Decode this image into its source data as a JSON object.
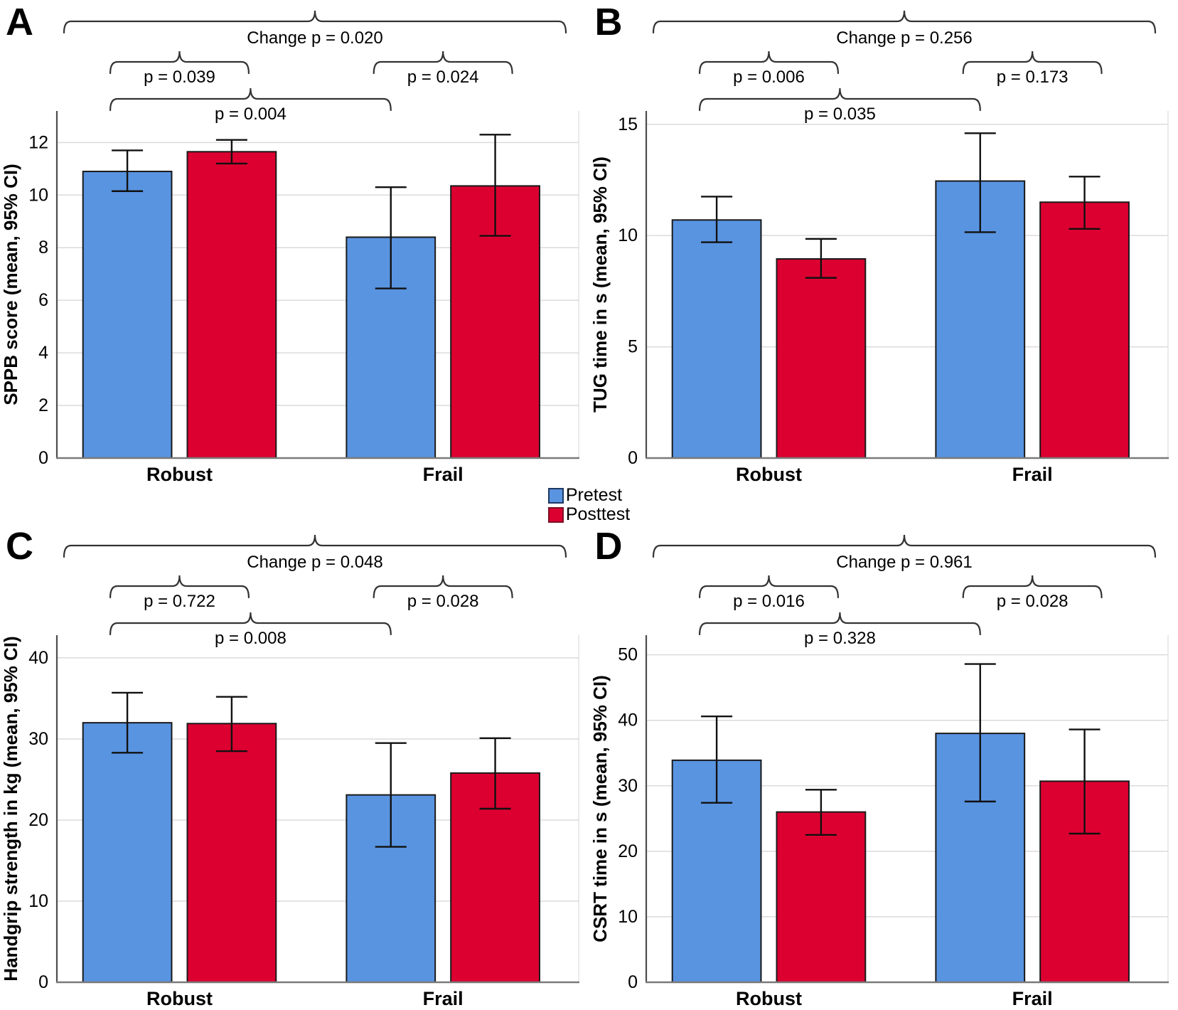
{
  "legend": {
    "items": [
      {
        "label": "Pretest",
        "color": "#5994E1",
        "border": "#1F3864"
      },
      {
        "label": "Posttest",
        "color": "#DC0031",
        "border": "#7E1023"
      }
    ]
  },
  "style": {
    "grid_color": "#DBDBDB",
    "axis_color": "#4D4D4D",
    "baseline_color": "#7A7A7A",
    "bar_border": "#1A1A1A",
    "error_color": "#111111",
    "bracket_color": "#333333",
    "text_color": "#000000"
  },
  "chart_data": [
    {
      "type": "bar",
      "panel": "A",
      "ylabel": "SPPB score (mean, 95% CI)",
      "categories": [
        "Robust",
        "Frail"
      ],
      "series": [
        {
          "name": "Pretest",
          "means": [
            10.9,
            8.4
          ],
          "ci_low": [
            10.15,
            6.45
          ],
          "ci_high": [
            11.7,
            10.3
          ]
        },
        {
          "name": "Posttest",
          "means": [
            11.65,
            10.35
          ],
          "ci_low": [
            11.2,
            8.45
          ],
          "ci_high": [
            12.1,
            12.3
          ]
        }
      ],
      "yticks": [
        0,
        2,
        4,
        6,
        8,
        10,
        12
      ],
      "ylim": [
        0,
        13.2
      ],
      "grid": true,
      "annotations": {
        "change": "Change p = 0.020",
        "pairs": [
          "p = 0.039",
          "p = 0.024"
        ],
        "cross": "p = 0.004"
      }
    },
    {
      "type": "bar",
      "panel": "B",
      "ylabel": "TUG time in s (mean, 95% CI)",
      "categories": [
        "Robust",
        "Frail"
      ],
      "series": [
        {
          "name": "Pretest",
          "means": [
            10.7,
            12.45
          ],
          "ci_low": [
            9.7,
            10.15
          ],
          "ci_high": [
            11.75,
            14.6
          ]
        },
        {
          "name": "Posttest",
          "means": [
            8.95,
            11.5
          ],
          "ci_low": [
            8.1,
            10.3
          ],
          "ci_high": [
            9.85,
            12.65
          ]
        }
      ],
      "yticks": [
        0,
        5,
        10,
        15
      ],
      "ylim": [
        0,
        15.6
      ],
      "grid": true,
      "annotations": {
        "change": "Change p = 0.256",
        "pairs": [
          "p = 0.006",
          "p = 0.173"
        ],
        "cross": "p = 0.035"
      }
    },
    {
      "type": "bar",
      "panel": "C",
      "ylabel": "Handgrip strength in kg (mean, 95% CI)",
      "categories": [
        "Robust",
        "Frail"
      ],
      "series": [
        {
          "name": "Pretest",
          "means": [
            32.0,
            23.1
          ],
          "ci_low": [
            28.3,
            16.7
          ],
          "ci_high": [
            35.7,
            29.5
          ]
        },
        {
          "name": "Posttest",
          "means": [
            31.9,
            25.8
          ],
          "ci_low": [
            28.5,
            21.4
          ],
          "ci_high": [
            35.2,
            30.1
          ]
        }
      ],
      "yticks": [
        0,
        10,
        20,
        30,
        40
      ],
      "ylim": [
        0,
        42.8
      ],
      "grid": true,
      "annotations": {
        "change": "Change p = 0.048",
        "pairs": [
          "p = 0.722",
          "p = 0.028"
        ],
        "cross": "p = 0.008"
      }
    },
    {
      "type": "bar",
      "panel": "D",
      "ylabel": "CSRT time in s (mean, 95% CI)",
      "categories": [
        "Robust",
        "Frail"
      ],
      "series": [
        {
          "name": "Pretest",
          "means": [
            33.9,
            38.0
          ],
          "ci_low": [
            27.4,
            27.6
          ],
          "ci_high": [
            40.6,
            48.6
          ]
        },
        {
          "name": "Posttest",
          "means": [
            26.0,
            30.7
          ],
          "ci_low": [
            22.5,
            22.7
          ],
          "ci_high": [
            29.4,
            38.6
          ]
        }
      ],
      "yticks": [
        0,
        10,
        20,
        30,
        40,
        50
      ],
      "ylim": [
        0,
        53
      ],
      "grid": true,
      "annotations": {
        "change": "Change p = 0.961",
        "pairs": [
          "p = 0.016",
          "p = 0.028"
        ],
        "cross": "p = 0.328"
      }
    }
  ]
}
